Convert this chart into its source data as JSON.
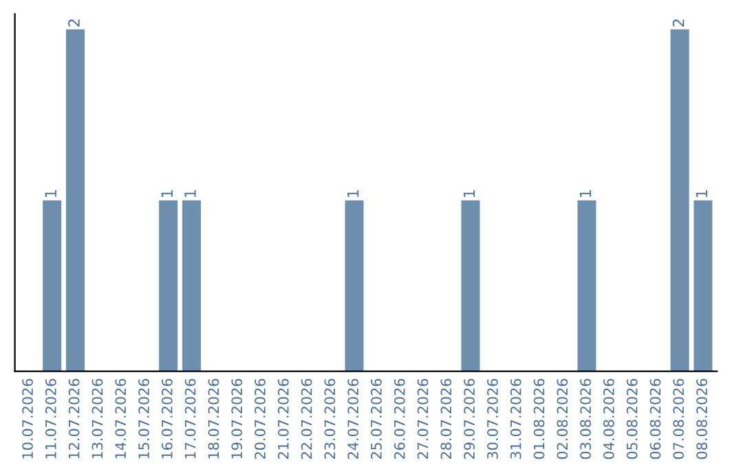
{
  "chart_data": {
    "type": "bar",
    "categories": [
      "10.07.2026",
      "11.07.2026",
      "12.07.2026",
      "13.07.2026",
      "14.07.2026",
      "15.07.2026",
      "16.07.2026",
      "17.07.2026",
      "18.07.2026",
      "19.07.2026",
      "20.07.2026",
      "21.07.2026",
      "22.07.2026",
      "23.07.2026",
      "24.07.2026",
      "25.07.2026",
      "26.07.2026",
      "27.07.2026",
      "28.07.2026",
      "29.07.2026",
      "30.07.2026",
      "31.07.2026",
      "01.08.2026",
      "02.08.2026",
      "03.08.2026",
      "04.08.2026",
      "05.08.2026",
      "06.08.2026",
      "07.08.2026",
      "08.08.2026"
    ],
    "values": [
      0,
      1,
      2,
      0,
      0,
      0,
      1,
      1,
      0,
      0,
      0,
      0,
      0,
      0,
      1,
      0,
      0,
      0,
      0,
      1,
      0,
      0,
      0,
      0,
      1,
      0,
      0,
      0,
      2,
      1
    ],
    "value_labels": [
      null,
      "1",
      "2",
      null,
      null,
      null,
      "1",
      "1",
      null,
      null,
      null,
      null,
      null,
      null,
      "1",
      null,
      null,
      null,
      null,
      "1",
      null,
      null,
      null,
      null,
      "1",
      null,
      null,
      null,
      "2",
      "1"
    ],
    "color": "#6d8fad",
    "tick_labels": "x",
    "grid": false
  }
}
